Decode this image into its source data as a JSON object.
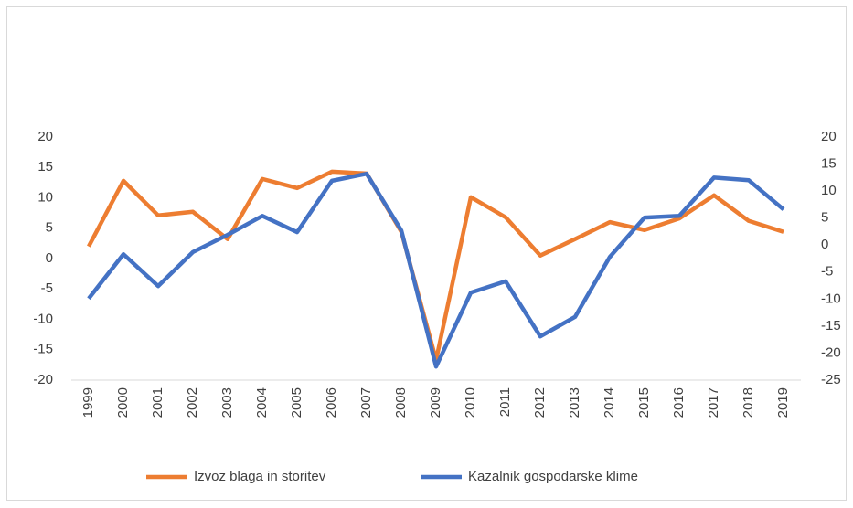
{
  "chart_data": {
    "type": "line",
    "categories": [
      "1999",
      "2000",
      "2001",
      "2002",
      "2003",
      "2004",
      "2005",
      "2006",
      "2007",
      "2008",
      "2009",
      "2010",
      "2011",
      "2012",
      "2013",
      "2014",
      "2015",
      "2016",
      "2017",
      "2018",
      "2019"
    ],
    "series": [
      {
        "name": "Izvoz blaga in storitev",
        "color": "#ed7d31",
        "axis": "y",
        "values": [
          2.0,
          12.8,
          7.1,
          7.7,
          3.2,
          13.1,
          11.6,
          14.3,
          14.0,
          4.4,
          -16.7,
          10.1,
          6.8,
          0.5,
          3.2,
          6.0,
          4.7,
          6.6,
          10.4,
          6.2,
          4.4
        ]
      },
      {
        "name": "Kazalnik gospodarske klime",
        "color": "#4472c4",
        "axis": "y2",
        "values": [
          -9.9,
          -1.7,
          -7.6,
          -1.3,
          1.9,
          5.4,
          2.4,
          11.9,
          13.2,
          2.7,
          -22.5,
          -8.8,
          -6.7,
          -16.9,
          -13.3,
          -2.2,
          5.1,
          5.4,
          12.5,
          12.0,
          6.6
        ]
      }
    ],
    "ylim": [
      -20,
      20
    ],
    "yticks": [
      20,
      15,
      10,
      5,
      0,
      -5,
      -10,
      -15,
      -20
    ],
    "y2lim": [
      -25,
      20
    ],
    "y2ticks": [
      20,
      15,
      10,
      5,
      0,
      -5,
      -10,
      -15,
      -20,
      -25
    ],
    "grid": false,
    "legend": "bottom"
  }
}
